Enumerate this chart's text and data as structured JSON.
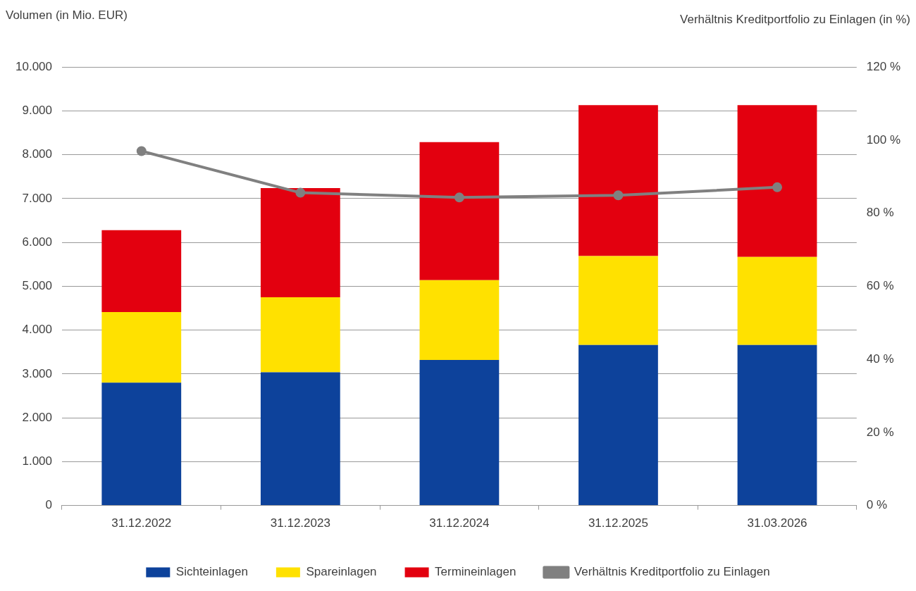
{
  "chart_data": {
    "type": "bar",
    "stacked": true,
    "ylabel": "Volumen (in Mio. EUR)",
    "y2label": "Verhältnis Kreditportfolio zu Einlagen (in %)",
    "categories": [
      "31.12.2022",
      "31.12.2023",
      "31.12.2024",
      "31.12.2025",
      "31.03.2026"
    ],
    "series": [
      {
        "name": "Sichteinlagen",
        "color": "#0d429b",
        "values": [
          2800,
          3040,
          3320,
          3660,
          3660
        ]
      },
      {
        "name": "Spareinlagen",
        "color": "#ffe100",
        "values": [
          1610,
          1710,
          1820,
          2030,
          2010
        ]
      },
      {
        "name": "Termineinlagen",
        "color": "#e3000f",
        "values": [
          1870,
          2490,
          3150,
          3440,
          3460
        ]
      },
      {
        "name": "Verhältnis Kreditportfolio zu Einlagen",
        "type": "line",
        "axis": "y2",
        "color": "#808080",
        "marker": "circle",
        "values": [
          97.0,
          85.6,
          84.3,
          84.9,
          87.1
        ]
      }
    ],
    "ylim": [
      0,
      10000
    ],
    "yticks": [
      0,
      {
        "value": 1000,
        "label": "1.000"
      },
      {
        "value": 2000,
        "label": "2.000"
      },
      {
        "value": 3000,
        "label": "3.000"
      },
      {
        "value": 4000,
        "label": "4.000"
      },
      {
        "value": 5000,
        "label": "5.000"
      },
      {
        "value": 6000,
        "label": "6.000"
      },
      {
        "value": 7000,
        "label": "7.000"
      },
      {
        "value": 8000,
        "label": "8.000"
      },
      {
        "value": 9000,
        "label": "9.000"
      },
      {
        "value": 10000,
        "label": "10.000"
      }
    ],
    "y2lim": [
      0,
      120
    ],
    "y2ticks": [
      {
        "value": 0,
        "label": "0 %"
      },
      {
        "value": 20,
        "label": "20 %"
      },
      {
        "value": 40,
        "label": "40 %"
      },
      {
        "value": 60,
        "label": "60 %"
      },
      {
        "value": 80,
        "label": "80 %"
      },
      {
        "value": 100,
        "label": "100 %"
      },
      {
        "value": 120,
        "label": "120 %"
      }
    ],
    "grid": "y",
    "legend": "bottom"
  }
}
